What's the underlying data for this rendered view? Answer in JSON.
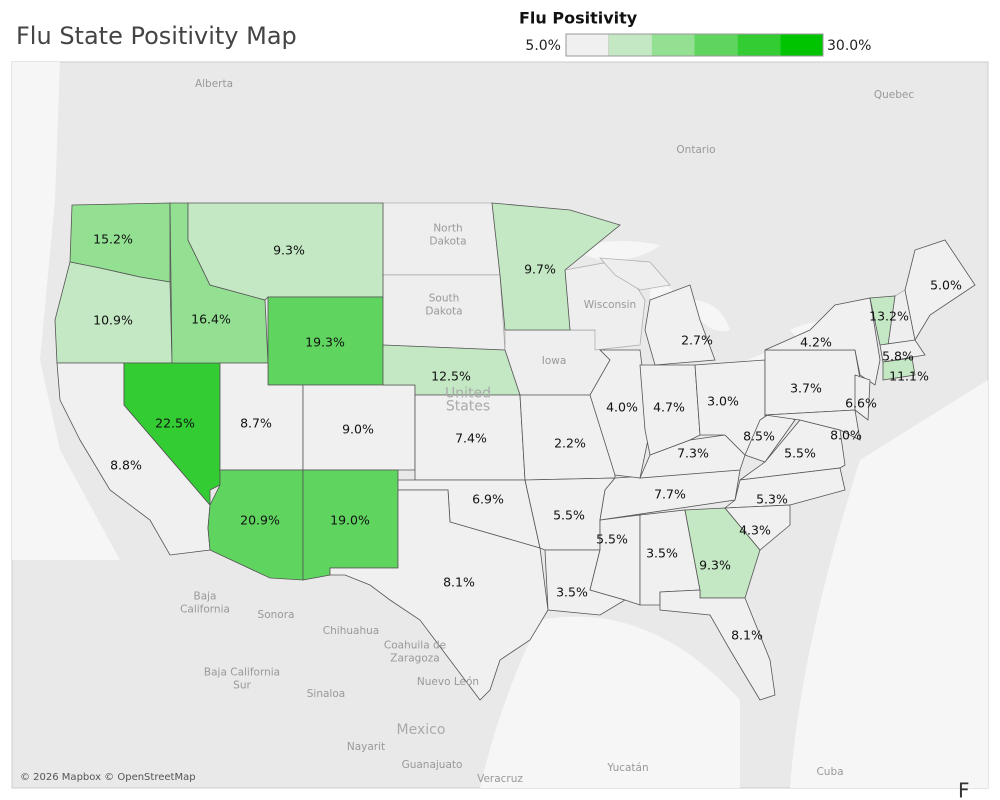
{
  "header": {
    "title": "Flu State Positivity Map"
  },
  "legend": {
    "title": "Flu Positivity",
    "min": {
      "value": 5,
      "label": "5.0%"
    },
    "max": {
      "value": 30,
      "label": "30.0%"
    },
    "colors": [
      "#f0f0f0",
      "#c3e8c3",
      "#93e093",
      "#5fd55f",
      "#33cc33",
      "#00c400"
    ]
  },
  "states": [
    {
      "value": 15.2,
      "label": "15.2%"
    },
    {
      "value": 10.9,
      "label": "10.9%"
    },
    {
      "value": 8.8,
      "label": "8.8%"
    },
    {
      "value": 22.5,
      "label": "22.5%"
    },
    {
      "value": 16.4,
      "label": "16.4%"
    },
    {
      "value": 9.3,
      "label": "9.3%"
    },
    {
      "value": 19.3,
      "label": "19.3%"
    },
    {
      "value": 8.7,
      "label": "8.7%"
    },
    {
      "value": 9.0,
      "label": "9.0%"
    },
    {
      "value": 20.9,
      "label": "20.9%"
    },
    {
      "value": 19.0,
      "label": "19.0%"
    },
    {
      "value": 12.5,
      "label": "12.5%"
    },
    {
      "value": 7.4,
      "label": "7.4%"
    },
    {
      "value": 6.9,
      "label": "6.9%"
    },
    {
      "value": 8.1,
      "label": "8.1%"
    },
    {
      "value": 9.7,
      "label": "9.7%"
    },
    {
      "value": 2.2,
      "label": "2.2%"
    },
    {
      "value": 5.5,
      "label": "5.5%"
    },
    {
      "value": 3.5,
      "label": "3.5%"
    },
    {
      "value": 5.5,
      "label": "5.5%"
    },
    {
      "value": 3.5,
      "label": "3.5%"
    },
    {
      "value": 9.3,
      "label": "9.3%"
    },
    {
      "value": 8.1,
      "label": "8.1%"
    },
    {
      "value": 7.7,
      "label": "7.7%"
    },
    {
      "value": 7.3,
      "label": "7.3%"
    },
    {
      "value": 4.0,
      "label": "4.0%"
    },
    {
      "value": 4.7,
      "label": "4.7%"
    },
    {
      "value": 2.7,
      "label": "2.7%"
    },
    {
      "value": 3.0,
      "label": "3.0%"
    },
    {
      "value": 8.5,
      "label": "8.5%"
    },
    {
      "value": 5.5,
      "label": "5.5%"
    },
    {
      "value": 5.3,
      "label": "5.3%"
    },
    {
      "value": 4.3,
      "label": "4.3%"
    },
    {
      "value": 3.7,
      "label": "3.7%"
    },
    {
      "value": 4.2,
      "label": "4.2%"
    },
    {
      "value": 13.2,
      "label": "13.2%"
    },
    {
      "value": 5.0,
      "label": "5.0%"
    },
    {
      "value": 5.8,
      "label": "5.8%"
    },
    {
      "value": 11.1,
      "label": "11.1%"
    },
    {
      "value": 6.6,
      "label": "6.6%"
    },
    {
      "value": 8.0,
      "label": "8.0%"
    }
  ],
  "basemap_labels": [
    {
      "lines": [
        "Alberta"
      ]
    },
    {
      "lines": [
        "Quebec"
      ]
    },
    {
      "lines": [
        "Ontario"
      ]
    },
    {
      "lines": [
        "North",
        "Dakota"
      ]
    },
    {
      "lines": [
        "South",
        "Dakota"
      ]
    },
    {
      "lines": [
        "Wisconsin"
      ]
    },
    {
      "lines": [
        "Iowa"
      ]
    },
    {
      "lines": [
        "United",
        "States"
      ]
    },
    {
      "lines": [
        "Baja",
        "California"
      ]
    },
    {
      "lines": [
        "Sonora"
      ]
    },
    {
      "lines": [
        "Chihuahua"
      ]
    },
    {
      "lines": [
        "Coahuila de",
        "Zaragoza"
      ]
    },
    {
      "lines": [
        "Baja California",
        "Sur"
      ]
    },
    {
      "lines": [
        "Nuevo León"
      ]
    },
    {
      "lines": [
        "Sinaloa"
      ]
    },
    {
      "lines": [
        "Mexico"
      ]
    },
    {
      "lines": [
        "Nayarit"
      ]
    },
    {
      "lines": [
        "Guanajuato"
      ]
    },
    {
      "lines": [
        "Veracruz"
      ]
    },
    {
      "lines": [
        "Yucatán"
      ]
    },
    {
      "lines": [
        "Cuba"
      ]
    }
  ],
  "attribution": "© 2026 Mapbox © OpenStreetMap",
  "footer": "F"
}
